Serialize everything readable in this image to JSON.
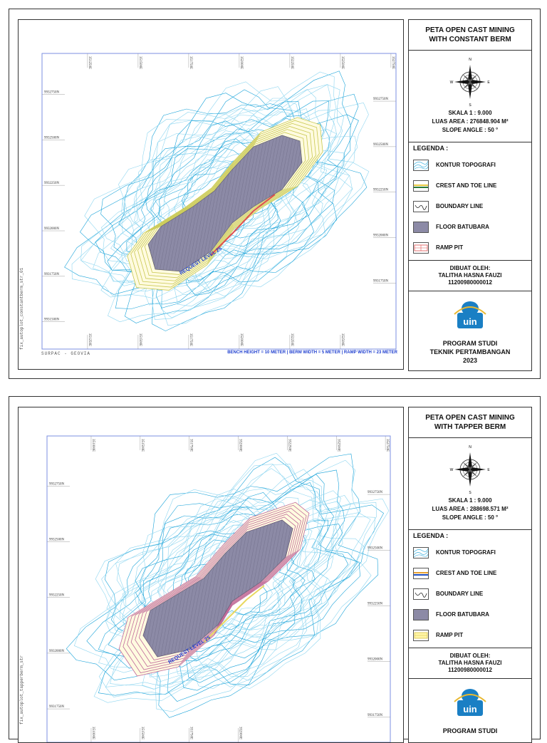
{
  "maps": [
    {
      "title_line1": "PETA OPEN CAST MINING",
      "title_line2": "WITH CONSTANT BERM",
      "scale": "SKALA 1 : 9.000",
      "area_label": "LUAS AREA :",
      "area_value": "276848.904 M²",
      "slope": "SLOPE ANGLE : 50 °",
      "legend_title": "LEGENDA :",
      "legend": [
        {
          "label": "KONTUR TOPOGRAFI"
        },
        {
          "label": "CREST AND TOE LINE"
        },
        {
          "label": "BOUNDARY LINE"
        },
        {
          "label": "FLOOR  BATUBARA"
        },
        {
          "label": "RAMP PIT"
        }
      ],
      "author_label": "DIBUAT OLEH:",
      "author_name": "TALITHA HASNA FAUZI",
      "author_id": "11200980000012",
      "program_line1": "PROGRAM STUDI",
      "program_line2": "TEKNIK PERTAMBANGAN",
      "program_year": "2023",
      "request_label": "REQUEST LEVEL 25",
      "footer_left": "SURPAC - GEOVIA",
      "footer_right": "BENCH HEIGHT = 10 METER | BERM WIDTH = 5 METER | RAMP WIDTH = 23 METER",
      "side_label": "fix_autoplot_constantberm_str_01",
      "grid_top": [
        "351250E",
        "351500E",
        "351750E",
        "352000E",
        "352250E",
        "352500E",
        "352750E"
      ],
      "grid_bottom": [
        "351250E",
        "351500E",
        "351750E",
        "352000E",
        "352250E",
        "352500E"
      ],
      "grid_left": [
        "9932750N",
        "9932500N",
        "9932250N",
        "9932000N",
        "9931750N",
        "9931500N"
      ],
      "grid_right": [
        "9932750N",
        "9932500N",
        "9932250N",
        "9932000N",
        "9931750N"
      ]
    },
    {
      "title_line1": "PETA OPEN CAST MINING",
      "title_line2": "WITH TAPPER BERM",
      "scale": "SKALA 1 : 9.000",
      "area_label": "LUAS AREA :",
      "area_value": "288698.571 M²",
      "slope": "SLOPE ANGLE : 50 °",
      "legend_title": "LEGENDA :",
      "legend": [
        {
          "label": "KONTUR TOPOGRAFI"
        },
        {
          "label": "CREST AND TOE LINE"
        },
        {
          "label": "BOUNDARY LINE"
        },
        {
          "label": "FLOOR  BATUBARA"
        },
        {
          "label": "RAMP PIT"
        }
      ],
      "author_label": "DIBUAT OLEH:",
      "author_name": "TALITHA HASNA FAUZI",
      "author_id": "11200980000012",
      "program_line1": "PROGRAM STUDI",
      "request_label": "REQUEST LEVEL 25",
      "side_label": "fix_autoplot_tapperberm_str",
      "grid_top": [
        "351000E",
        "351500E",
        "351750E",
        "352000E",
        "352250E",
        "352500E",
        "352750E"
      ],
      "grid_bottom": [
        "351000E",
        "351500E",
        "351750E",
        "352000E"
      ],
      "grid_left": [
        "9932750N",
        "9932500N",
        "9932250N",
        "9932000N",
        "9931750N"
      ],
      "grid_right": [
        "9932750N",
        "9932500N",
        "9932250N",
        "9932000N",
        "9931750N"
      ]
    }
  ],
  "colors": {
    "contour": "#1aa3d9",
    "contour_light": "#8fd6f0",
    "pit_floor": "#8c8aa6",
    "crest_constant": "#e8e88a",
    "crest_tapper": "#c06a9a",
    "ramp_constant": "#e05050",
    "ramp_tapper": "#e8d860",
    "grid_frame": "#7b8fe0",
    "footer_blue": "#1f3fd0",
    "logo_blue": "#1a7fc4"
  },
  "icons": {
    "compass": "compass-rose-icon",
    "logo": "uin-logo-icon"
  }
}
